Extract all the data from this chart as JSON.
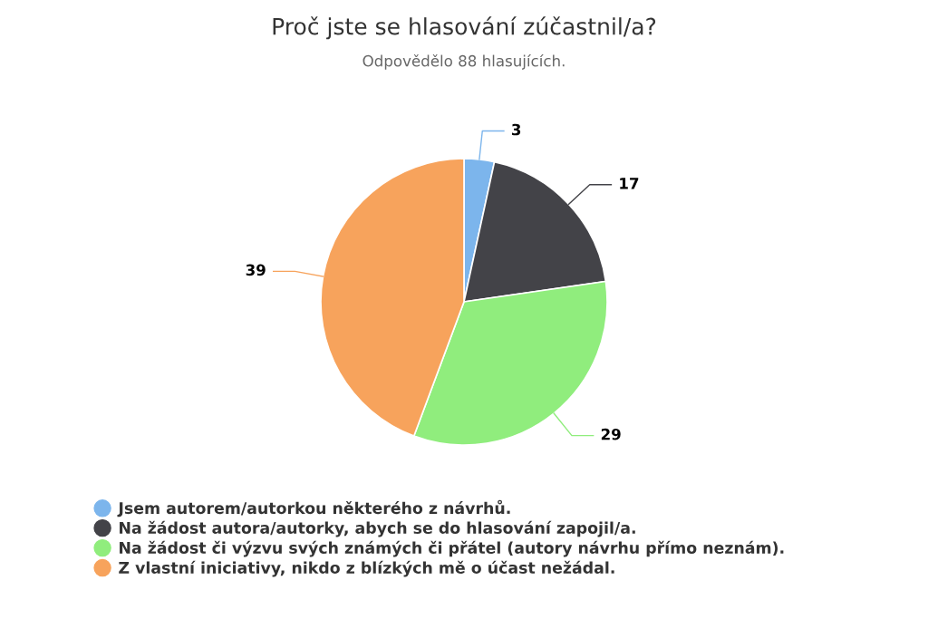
{
  "chart_data": {
    "type": "pie",
    "title": "Proč jste se hlasování zúčastnil/a?",
    "subtitle": "Odpovědělo 88 hlasujících.",
    "categories": [
      "Jsem autorem/autorkou některého z návrhů.",
      "Na žádost autora/autorky, abych se do hlasování zapojil/a.",
      "Na žádost či výzvu svých známých či přátel (autory návrhu přímo neznám).",
      "Z vlastní iniciativy, nikdo z blízkých mě o účast nežádal."
    ],
    "values": [
      3,
      17,
      29,
      39
    ],
    "colors": [
      "#7cb5ec",
      "#434348",
      "#90ed7d",
      "#f7a35c"
    ],
    "data_labels": true,
    "legend": "bottom left"
  }
}
